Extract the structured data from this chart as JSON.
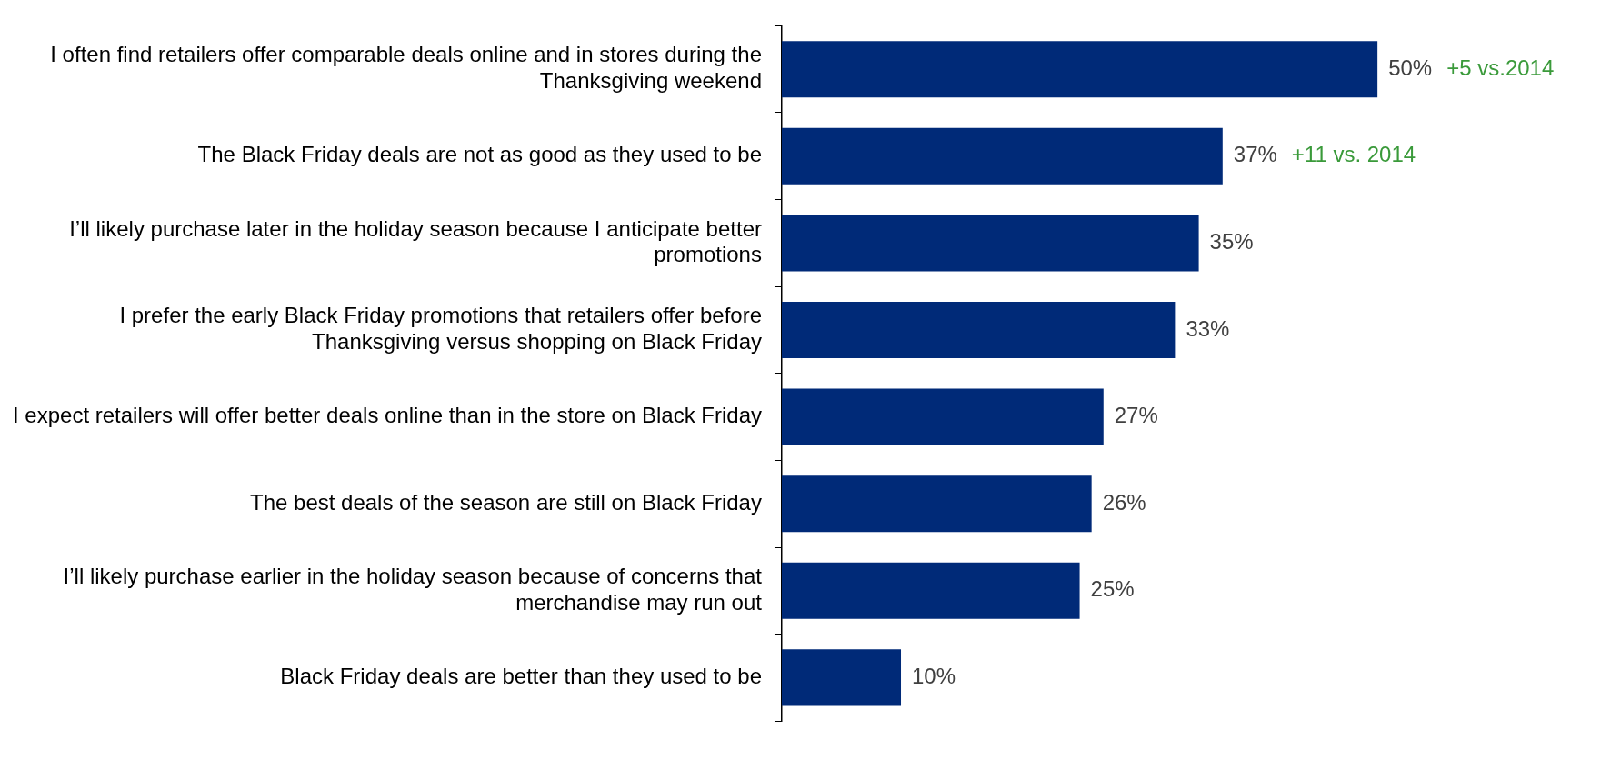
{
  "chart_data": {
    "type": "bar",
    "orientation": "horizontal",
    "categories": [
      "I often find retailers offer comparable deals online and in stores during the Thanksgiving weekend",
      "The Black Friday deals are not as good as they used to be",
      "I’ll likely purchase later in the holiday season because I anticipate better promotions",
      "I prefer the early Black Friday promotions that retailers offer before Thanksgiving versus shopping on Black Friday",
      "I expect retailers will offer better deals online than in the store on Black Friday",
      "The best deals of the season are still on Black Friday",
      "I’ll likely purchase earlier in the holiday season because of concerns that merchandise may run out",
      "Black Friday deals are better than they used to be"
    ],
    "values": [
      50,
      37,
      35,
      33,
      27,
      26,
      25,
      10
    ],
    "value_labels": [
      "50%",
      "37%",
      "35%",
      "33%",
      "27%",
      "26%",
      "25%",
      "10%"
    ],
    "color": "#002a78",
    "annotations": [
      "+5 vs.2014",
      "+11 vs. 2014"
    ],
    "grid": false,
    "legend": false
  }
}
